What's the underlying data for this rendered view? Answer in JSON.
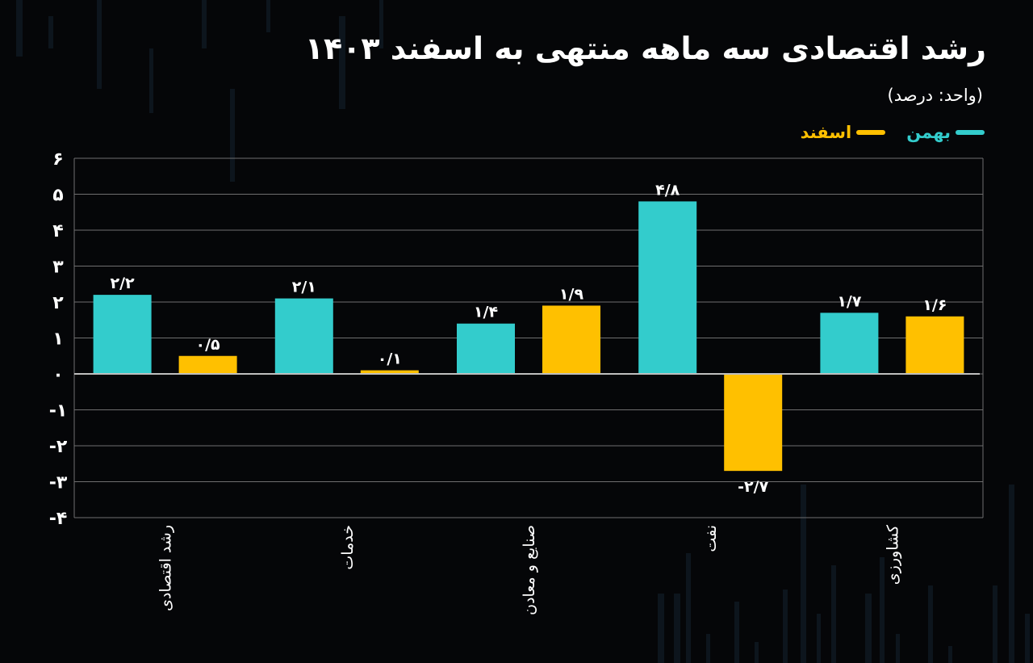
{
  "header": {
    "title": "رشد اقتصادی سه ماهه منتهی به اسفند ۱۴۰۳",
    "unit": "(واحد: درصد)"
  },
  "colors": {
    "bahman": "#33cccc",
    "esfand": "#ffc000",
    "grid": "#6f6f6f",
    "background": "#050608"
  },
  "chart_data": {
    "type": "bar",
    "categories": [
      "رشد اقتصادی",
      "خدمات",
      "صنایع و معادن",
      "نفت",
      "کشاورزی"
    ],
    "series": [
      {
        "name": "بهمن",
        "color": "#33cccc",
        "values": [
          2.2,
          2.1,
          1.4,
          4.8,
          1.7
        ],
        "labels": [
          "۲/۲",
          "۲/۱",
          "۱/۴",
          "۴/۸",
          "۱/۷"
        ]
      },
      {
        "name": "اسفند",
        "color": "#ffc000",
        "values": [
          0.5,
          0.1,
          1.9,
          -2.7,
          1.6
        ],
        "labels": [
          "۰/۵",
          "۰/۱",
          "۱/۹",
          "-۲/۷",
          "۱/۶"
        ]
      }
    ],
    "ylim": [
      -4,
      6
    ],
    "yticks": [
      6,
      5,
      4,
      3,
      2,
      1,
      0,
      -1,
      -2,
      -3,
      -4
    ],
    "ytick_labels": [
      "۶",
      "۵",
      "۴",
      "۳",
      "۲",
      "۱",
      "۰",
      "-۱",
      "-۲",
      "-۳",
      "-۴"
    ],
    "grid": true,
    "legend": "top-right",
    "xlabel": "",
    "ylabel": ""
  }
}
